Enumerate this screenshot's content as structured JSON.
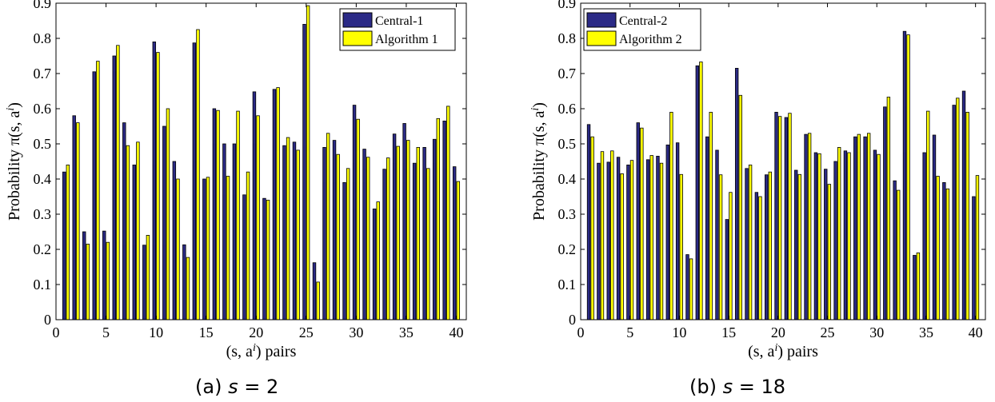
{
  "chart_data": [
    {
      "type": "bar",
      "caption_label": "(a)",
      "caption_var": "s",
      "caption_rest": " = 2",
      "xlabel": "(s, a^i) pairs",
      "ylabel": "Probability π(s, a^i)",
      "xlim": [
        0,
        41
      ],
      "ylim": [
        0,
        0.9
      ],
      "xticks": [
        "0",
        "5",
        "10",
        "15",
        "20",
        "25",
        "30",
        "35",
        "40"
      ],
      "yticks": [
        "0",
        "0.1",
        "0.2",
        "0.3",
        "0.4",
        "0.5",
        "0.6",
        "0.7",
        "0.8",
        "0.9"
      ],
      "legend_position": "top-right",
      "colors": [
        "#2b2a86",
        "#ffff00"
      ],
      "x": [
        1,
        2,
        3,
        4,
        5,
        6,
        7,
        8,
        9,
        10,
        11,
        12,
        13,
        14,
        15,
        16,
        17,
        18,
        19,
        20,
        21,
        22,
        23,
        24,
        25,
        26,
        27,
        28,
        29,
        30,
        31,
        32,
        33,
        34,
        35,
        36,
        37,
        38,
        39,
        40
      ],
      "series": [
        {
          "name": "Central-1",
          "values": [
            0.42,
            0.58,
            0.25,
            0.705,
            0.252,
            0.75,
            0.56,
            0.44,
            0.212,
            0.79,
            0.55,
            0.45,
            0.213,
            0.787,
            0.4,
            0.6,
            0.5,
            0.5,
            0.355,
            0.648,
            0.345,
            0.655,
            0.495,
            0.505,
            0.84,
            0.162,
            0.49,
            0.51,
            0.39,
            0.61,
            0.485,
            0.315,
            0.428,
            0.528,
            0.558,
            0.445,
            0.49,
            0.513,
            0.565,
            0.435
          ]
        },
        {
          "name": "Algorithm 1",
          "values": [
            0.44,
            0.56,
            0.215,
            0.735,
            0.22,
            0.78,
            0.495,
            0.505,
            0.24,
            0.76,
            0.6,
            0.4,
            0.177,
            0.825,
            0.405,
            0.595,
            0.408,
            0.593,
            0.42,
            0.58,
            0.34,
            0.66,
            0.518,
            0.482,
            0.893,
            0.107,
            0.53,
            0.47,
            0.43,
            0.57,
            0.462,
            0.335,
            0.46,
            0.493,
            0.51,
            0.49,
            0.43,
            0.572,
            0.607,
            0.393
          ]
        }
      ]
    },
    {
      "type": "bar",
      "caption_label": "(b)",
      "caption_var": "s",
      "caption_rest": " = 18",
      "xlabel": "(s, a^i) pairs",
      "ylabel": "Probability π(s, a^i)",
      "xlim": [
        0,
        41
      ],
      "ylim": [
        0,
        0.9
      ],
      "xticks": [
        "0",
        "5",
        "10",
        "15",
        "20",
        "25",
        "30",
        "35",
        "40"
      ],
      "yticks": [
        "0",
        "0.1",
        "0.2",
        "0.3",
        "0.4",
        "0.5",
        "0.6",
        "0.7",
        "0.8",
        "0.9"
      ],
      "legend_position": "top-left",
      "colors": [
        "#2b2a86",
        "#ffff00"
      ],
      "x": [
        1,
        2,
        3,
        4,
        5,
        6,
        7,
        8,
        9,
        10,
        11,
        12,
        13,
        14,
        15,
        16,
        17,
        18,
        19,
        20,
        21,
        22,
        23,
        24,
        25,
        26,
        27,
        28,
        29,
        30,
        31,
        32,
        33,
        34,
        35,
        36,
        37,
        38,
        39,
        40
      ],
      "series": [
        {
          "name": "Central-2",
          "values": [
            0.555,
            0.445,
            0.448,
            0.462,
            0.44,
            0.56,
            0.455,
            0.465,
            0.497,
            0.503,
            0.185,
            0.722,
            0.52,
            0.482,
            0.285,
            0.715,
            0.43,
            0.362,
            0.412,
            0.59,
            0.575,
            0.425,
            0.527,
            0.475,
            0.428,
            0.45,
            0.48,
            0.52,
            0.52,
            0.482,
            0.605,
            0.395,
            0.82,
            0.183,
            0.475,
            0.525,
            0.39,
            0.61,
            0.65,
            0.35
          ]
        },
        {
          "name": "Algorithm 2",
          "values": [
            0.52,
            0.478,
            0.48,
            0.415,
            0.453,
            0.545,
            0.467,
            0.445,
            0.59,
            0.413,
            0.173,
            0.733,
            0.59,
            0.412,
            0.362,
            0.638,
            0.44,
            0.35,
            0.42,
            0.578,
            0.587,
            0.413,
            0.53,
            0.472,
            0.385,
            0.49,
            0.475,
            0.527,
            0.53,
            0.47,
            0.633,
            0.368,
            0.81,
            0.19,
            0.593,
            0.408,
            0.372,
            0.63,
            0.59,
            0.41
          ]
        }
      ]
    }
  ]
}
